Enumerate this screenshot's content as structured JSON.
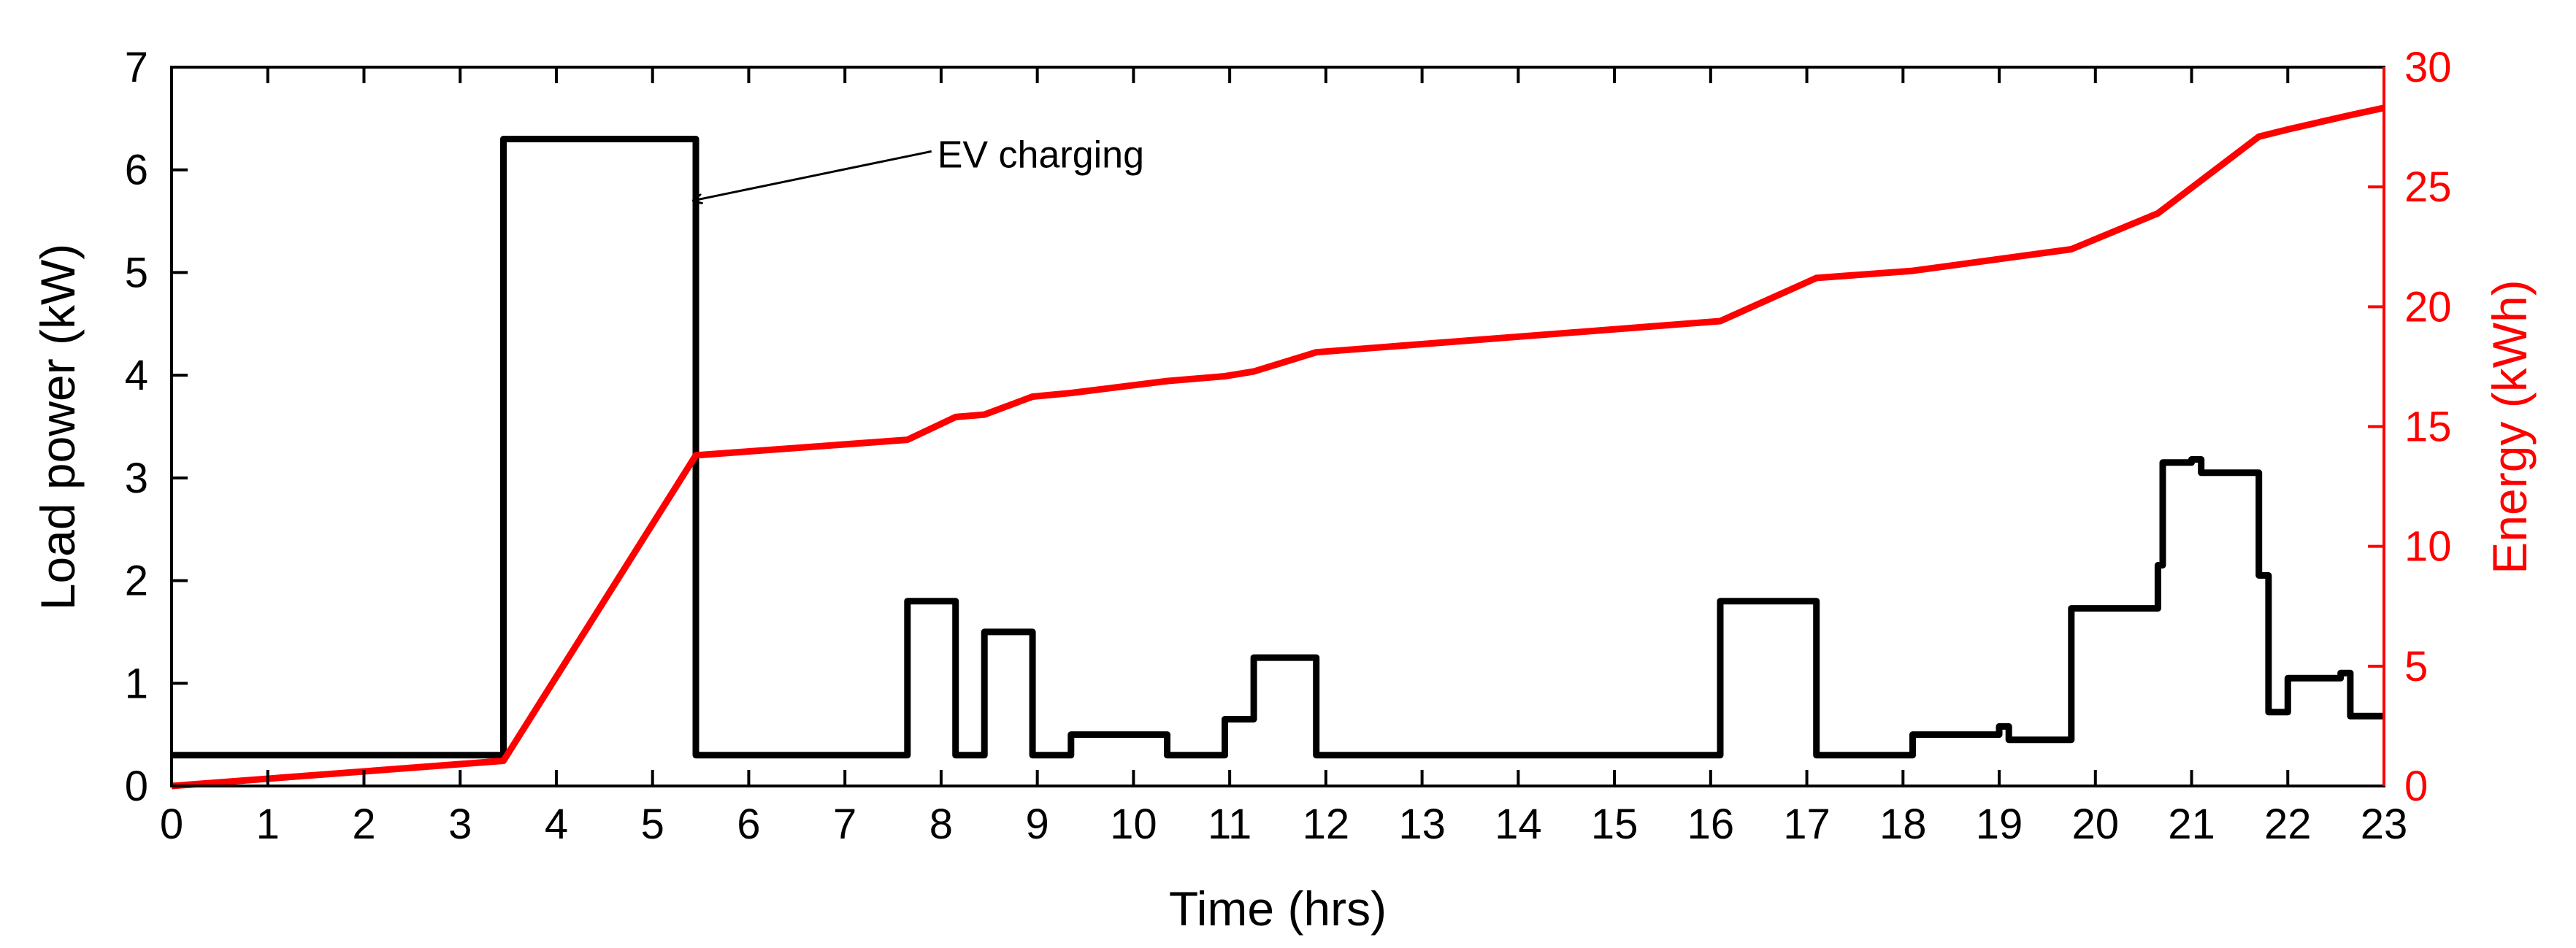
{
  "chart_data": {
    "type": "line",
    "title": "",
    "xlabel": "Time (hrs)",
    "ylabel_left": "Load power (kW)",
    "ylabel_right": "Energy (kWh)",
    "xlim": [
      0,
      23
    ],
    "ylim_left": [
      0,
      7
    ],
    "ylim_right": [
      0,
      30
    ],
    "x_ticks": [
      "0",
      "1",
      "2",
      "3",
      "4",
      "5",
      "6",
      "7",
      "8",
      "9",
      "10",
      "11",
      "12",
      "13",
      "14",
      "15",
      "16",
      "17",
      "18",
      "19",
      "20",
      "21",
      "22",
      "23"
    ],
    "y_left_ticks": [
      "0",
      "1",
      "2",
      "3",
      "4",
      "5",
      "6",
      "7"
    ],
    "y_right_ticks": [
      "0",
      "5",
      "10",
      "15",
      "20",
      "25",
      "30"
    ],
    "grid": false,
    "colors": {
      "load": "#000000",
      "energy": "#ff0000",
      "right_axis": "#ff0000"
    },
    "annotation": {
      "text": "EV charging",
      "target": [
        5.42,
        5.7
      ],
      "text_anchor_point": [
        7.9,
        6.18
      ]
    },
    "series": [
      {
        "name": "Load power",
        "axis": "left",
        "step": true,
        "points": [
          [
            0,
            0.3
          ],
          [
            3.45,
            0.3
          ],
          [
            3.45,
            6.3
          ],
          [
            5.45,
            6.3
          ],
          [
            5.45,
            0.3
          ],
          [
            7.65,
            0.3
          ],
          [
            7.65,
            1.8
          ],
          [
            8.15,
            1.8
          ],
          [
            8.15,
            0.3
          ],
          [
            8.45,
            0.3
          ],
          [
            8.45,
            1.5
          ],
          [
            8.95,
            1.5
          ],
          [
            8.95,
            0.3
          ],
          [
            9.35,
            0.3
          ],
          [
            9.35,
            0.5
          ],
          [
            10.35,
            0.5
          ],
          [
            10.35,
            0.3
          ],
          [
            10.95,
            0.3
          ],
          [
            10.95,
            0.65
          ],
          [
            11.25,
            0.65
          ],
          [
            11.25,
            1.25
          ],
          [
            11.9,
            1.25
          ],
          [
            11.9,
            0.3
          ],
          [
            16.1,
            0.3
          ],
          [
            16.1,
            1.8
          ],
          [
            17.1,
            1.8
          ],
          [
            17.1,
            0.3
          ],
          [
            18.1,
            0.3
          ],
          [
            18.1,
            0.5
          ],
          [
            19.0,
            0.5
          ],
          [
            19.0,
            0.58
          ],
          [
            19.1,
            0.58
          ],
          [
            19.1,
            0.45
          ],
          [
            19.75,
            0.45
          ],
          [
            19.75,
            1.73
          ],
          [
            20.65,
            1.73
          ],
          [
            20.65,
            2.15
          ],
          [
            20.7,
            2.15
          ],
          [
            20.7,
            3.15
          ],
          [
            21.0,
            3.15
          ],
          [
            21.0,
            3.18
          ],
          [
            21.1,
            3.18
          ],
          [
            21.1,
            3.05
          ],
          [
            21.7,
            3.05
          ],
          [
            21.7,
            2.05
          ],
          [
            21.8,
            2.05
          ],
          [
            21.8,
            0.72
          ],
          [
            22.0,
            0.72
          ],
          [
            22.0,
            1.05
          ],
          [
            22.55,
            1.05
          ],
          [
            22.55,
            1.1
          ],
          [
            22.65,
            1.1
          ],
          [
            22.65,
            0.68
          ],
          [
            23,
            0.68
          ]
        ]
      },
      {
        "name": "Energy",
        "axis": "right",
        "step": false,
        "points": [
          [
            0,
            0
          ],
          [
            3.45,
            1.05
          ],
          [
            5.45,
            13.8
          ],
          [
            7.65,
            14.45
          ],
          [
            8.15,
            15.4
          ],
          [
            8.45,
            15.5
          ],
          [
            8.95,
            16.25
          ],
          [
            9.35,
            16.4
          ],
          [
            10.35,
            16.9
          ],
          [
            10.95,
            17.1
          ],
          [
            11.25,
            17.3
          ],
          [
            11.9,
            18.1
          ],
          [
            16.1,
            19.4
          ],
          [
            17.1,
            21.2
          ],
          [
            18.1,
            21.5
          ],
          [
            19.75,
            22.4
          ],
          [
            20.65,
            23.9
          ],
          [
            21.7,
            27.1
          ],
          [
            22.0,
            27.4
          ],
          [
            22.65,
            28.0
          ],
          [
            23,
            28.3
          ]
        ]
      }
    ]
  }
}
